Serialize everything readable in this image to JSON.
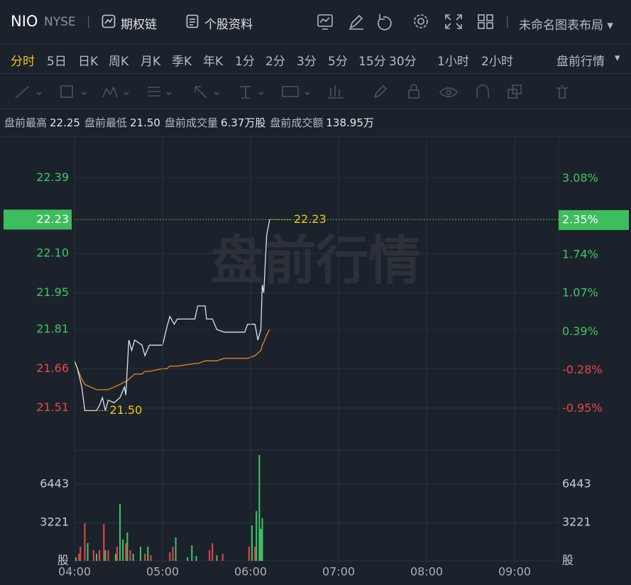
{
  "header": {
    "symbol": "NIO",
    "exchange": "NYSE",
    "links": [
      "期权链",
      "个股资料"
    ],
    "layout_menu": "未命名图表布局"
  },
  "periods": [
    "分时",
    "5日",
    "日K",
    "周K",
    "月K",
    "季K",
    "年K",
    "1分",
    "2分",
    "3分",
    "5分",
    "15分",
    "30分",
    "1小时",
    "2小时"
  ],
  "session_menu": "盘前行情",
  "stats": [
    {
      "label": "盘前最高",
      "value": "22.25"
    },
    {
      "label": "盘前最低",
      "value": "21.50"
    },
    {
      "label": "盘前成交量",
      "value": "6.37万股"
    },
    {
      "label": "盘前成交额",
      "value": "138.95万"
    }
  ],
  "chart_data": [
    {
      "type": "line",
      "watermark": "盘前行情",
      "up_color": "#3fc56a",
      "down_color": "#e8474a",
      "x": [
        240,
        242,
        245,
        247,
        255,
        257,
        259,
        261,
        263,
        267,
        271,
        274,
        275,
        277,
        279,
        281,
        286,
        288,
        291,
        300,
        303,
        305,
        308,
        310,
        322,
        324,
        329,
        330,
        334,
        337,
        342,
        356,
        358,
        363,
        365,
        367,
        368,
        369,
        371,
        373
      ],
      "series": [
        {
          "color": "#dfe3e8",
          "values": [
            21.69,
            21.66,
            21.59,
            21.5,
            21.5,
            21.52,
            21.55,
            21.5,
            21.54,
            21.53,
            21.55,
            21.59,
            21.56,
            21.77,
            21.73,
            21.77,
            21.75,
            21.71,
            21.75,
            21.75,
            21.82,
            21.86,
            21.83,
            21.85,
            21.85,
            21.9,
            21.9,
            21.85,
            21.85,
            21.81,
            21.8,
            21.8,
            21.83,
            21.83,
            21.77,
            21.81,
            21.98,
            21.95,
            22.17,
            22.23
          ]
        },
        {
          "color": "#d98a2b",
          "values": [
            21.69,
            21.66,
            21.62,
            21.6,
            21.58,
            21.58,
            21.58,
            21.58,
            21.58,
            21.59,
            21.6,
            21.61,
            21.61,
            21.62,
            21.63,
            21.64,
            21.64,
            21.65,
            21.65,
            21.66,
            21.66,
            21.67,
            21.67,
            21.67,
            21.68,
            21.68,
            21.69,
            21.69,
            21.69,
            21.69,
            21.7,
            21.7,
            21.7,
            21.71,
            21.72,
            21.73,
            21.75,
            21.76,
            21.79,
            21.81
          ]
        }
      ],
      "xlim": [
        240,
        570
      ],
      "ylim": [
        21.36,
        22.54
      ],
      "yticks": [
        22.39,
        {
          "value": 22.1,
          "label": "22.10"
        },
        21.95,
        21.81,
        21.66,
        21.51
      ],
      "y2lim": [
        -1.63,
        3.78
      ],
      "y2ticks": [
        {
          "value": 3.08,
          "label": "3.08%"
        },
        {
          "value": 1.74,
          "label": "1.74%"
        },
        {
          "value": 1.07,
          "label": "1.07%"
        },
        {
          "value": 0.39,
          "label": "0.39%"
        },
        {
          "value": -0.28,
          "label": "-0.28%"
        },
        {
          "value": -0.95,
          "label": "-0.95%"
        }
      ],
      "last": {
        "value": 22.23,
        "pct": {
          "value": 2.35,
          "label": "2.35%"
        }
      },
      "high_label": 22.23,
      "low_label": {
        "value": 21.5,
        "label": "21.50"
      },
      "grid": true
    },
    {
      "type": "bar",
      "x": [
        241,
        243,
        244,
        247,
        249,
        253,
        255,
        257,
        260,
        261,
        263,
        268,
        269,
        271,
        273,
        275,
        276,
        278,
        280,
        285,
        288,
        290,
        292,
        305,
        307,
        309,
        317,
        320,
        323,
        332,
        334,
        337,
        341,
        359,
        361,
        363,
        364,
        366,
        367,
        368
      ],
      "values": [
        300,
        600,
        1190,
        3160,
        1490,
        900,
        600,
        900,
        3100,
        900,
        900,
        600,
        1190,
        4770,
        1790,
        1490,
        2390,
        900,
        600,
        1190,
        600,
        1190,
        480,
        720,
        1190,
        1970,
        300,
        1310,
        420,
        900,
        1490,
        480,
        600,
        1190,
        2980,
        1190,
        4180,
        8900,
        2690,
        3580
      ],
      "colors": [
        "#3fc56a",
        "#e8474a",
        "#e8474a",
        "#e8474a",
        "#3fc56a",
        "#e8474a",
        "#3fc56a",
        "#e8474a",
        "#e8474a",
        "#3fc56a",
        "#e8474a",
        "#3fc56a",
        "#e8474a",
        "#3fc56a",
        "#3fc56a",
        "#e8474a",
        "#3fc56a",
        "#e8474a",
        "#3fc56a",
        "#3fc56a",
        "#e8474a",
        "#3fc56a",
        "#e8474a",
        "#e8474a",
        "#e8474a",
        "#3fc56a",
        "#3fc56a",
        "#3fc56a",
        "#3fc56a",
        "#e8474a",
        "#e8474a",
        "#3fc56a",
        "#e8474a",
        "#e8474a",
        "#3fc56a",
        "#e8474a",
        "#3fc56a",
        "#3fc56a",
        "#3fc56a",
        "#3fc56a"
      ],
      "xlim": [
        240,
        570
      ],
      "ylim": [
        0,
        9070
      ],
      "yticks": [
        {
          "value": 0,
          "label": "股"
        },
        3221,
        6443
      ],
      "xticks": [
        {
          "value": 240,
          "label": "04:00"
        },
        {
          "value": 300,
          "label": "05:00"
        },
        {
          "value": 360,
          "label": "06:00"
        },
        {
          "value": 420,
          "label": "07:00"
        },
        {
          "value": 480,
          "label": "08:00"
        },
        {
          "value": 540,
          "label": "09:00"
        }
      ],
      "grid": true
    }
  ]
}
